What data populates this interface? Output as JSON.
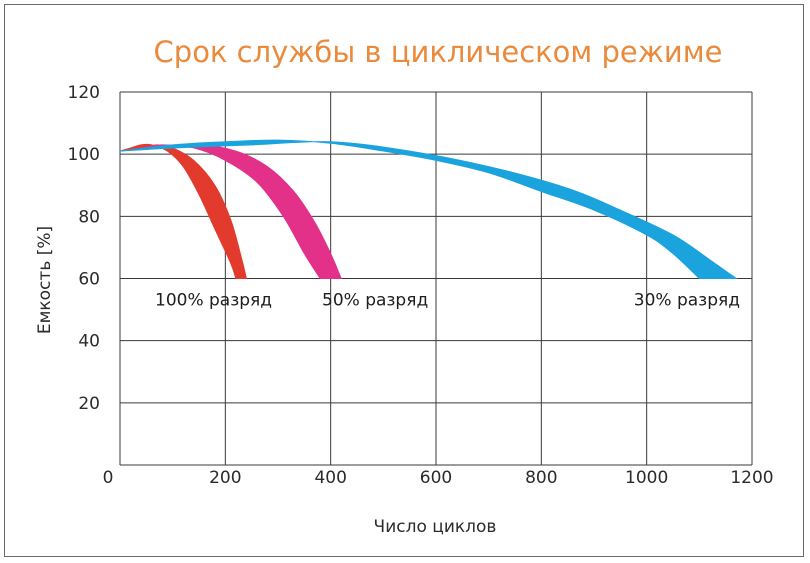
{
  "chart_data": {
    "type": "area",
    "title": "Срок службы в циклическом режиме",
    "xlabel": "Число циклов",
    "ylabel": "Емкость [%]",
    "xlim": [
      0,
      1200
    ],
    "ylim": [
      0,
      120
    ],
    "x_ticks": [
      "0",
      "200",
      "400",
      "600",
      "800",
      "1000",
      "1200"
    ],
    "y_ticks": [
      "20",
      "40",
      "60",
      "80",
      "100",
      "120"
    ],
    "grid": true,
    "series": [
      {
        "name": "100% разряд",
        "color": "#e23a2c",
        "upper": [
          [
            0,
            101
          ],
          [
            20,
            102
          ],
          [
            40,
            103
          ],
          [
            60,
            103
          ],
          [
            90,
            101
          ],
          [
            120,
            96
          ],
          [
            150,
            87
          ],
          [
            180,
            76
          ],
          [
            210,
            65
          ],
          [
            220,
            60
          ]
        ],
        "lower": [
          [
            0,
            101
          ],
          [
            40,
            102
          ],
          [
            70,
            103
          ],
          [
            100,
            102
          ],
          [
            140,
            98
          ],
          [
            180,
            90
          ],
          [
            210,
            79
          ],
          [
            230,
            67
          ],
          [
            240,
            60
          ]
        ]
      },
      {
        "name": "50% разряд",
        "color": "#e3318a",
        "upper": [
          [
            0,
            101
          ],
          [
            40,
            102
          ],
          [
            80,
            103
          ],
          [
            140,
            102
          ],
          [
            200,
            98
          ],
          [
            260,
            91
          ],
          [
            310,
            80
          ],
          [
            350,
            68
          ],
          [
            380,
            60
          ]
        ],
        "lower": [
          [
            0,
            101
          ],
          [
            80,
            102
          ],
          [
            150,
            103
          ],
          [
            220,
            101
          ],
          [
            280,
            96
          ],
          [
            330,
            88
          ],
          [
            370,
            78
          ],
          [
            400,
            68
          ],
          [
            420,
            60
          ]
        ]
      },
      {
        "name": "30% разряд",
        "color": "#1aa3dc",
        "upper": [
          [
            0,
            101
          ],
          [
            100,
            103
          ],
          [
            200,
            104
          ],
          [
            300,
            104.5
          ],
          [
            400,
            103.5
          ],
          [
            500,
            101
          ],
          [
            600,
            98
          ],
          [
            700,
            94
          ],
          [
            800,
            88
          ],
          [
            900,
            82
          ],
          [
            1000,
            74
          ],
          [
            1050,
            68
          ],
          [
            1100,
            60
          ]
        ],
        "lower": [
          [
            0,
            101
          ],
          [
            100,
            102
          ],
          [
            250,
            103
          ],
          [
            400,
            104
          ],
          [
            550,
            101
          ],
          [
            700,
            96
          ],
          [
            850,
            89
          ],
          [
            950,
            82
          ],
          [
            1050,
            74
          ],
          [
            1120,
            66
          ],
          [
            1170,
            60
          ]
        ]
      }
    ]
  }
}
